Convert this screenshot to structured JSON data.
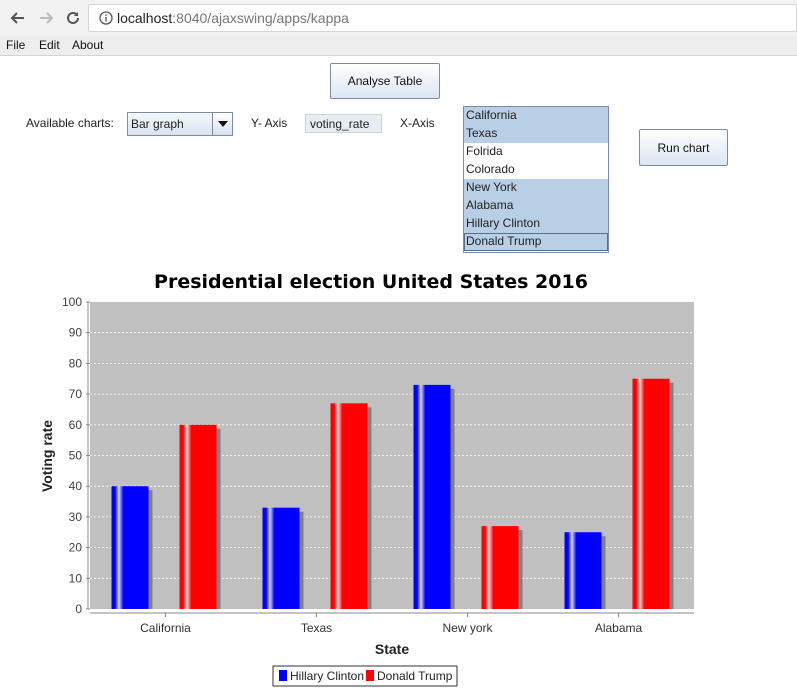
{
  "browser": {
    "url_host": "localhost",
    "url_path": ":8040/ajaxswing/apps/kappa"
  },
  "menu": [
    "File",
    "Edit",
    "About"
  ],
  "controls": {
    "analyse_label": "Analyse Table",
    "available_charts_label": "Available charts:",
    "chart_type_value": "Bar graph",
    "y_axis_label": "Y- Axis",
    "y_axis_value": "voting_rate",
    "x_axis_label": "X-Axis",
    "run_label": "Run chart"
  },
  "xaxis_options": [
    {
      "label": "California",
      "selected": true
    },
    {
      "label": "Texas",
      "selected": true
    },
    {
      "label": "Folrida",
      "selected": false
    },
    {
      "label": "Colorado",
      "selected": false
    },
    {
      "label": "New York",
      "selected": true
    },
    {
      "label": "Alabama",
      "selected": true
    },
    {
      "label": "Hillary Clinton",
      "selected": true
    },
    {
      "label": "Donald Trump",
      "selected": true,
      "focused": true
    }
  ],
  "colors": {
    "plot_background": "#c0c0c0",
    "clinton": "#0000ff",
    "trump": "#ff0000",
    "shadow": "#808080"
  },
  "chart_data": {
    "type": "bar",
    "title": "Presidential election United States 2016",
    "xlabel": "State",
    "ylabel": "Voting rate",
    "categories": [
      "California",
      "Texas",
      "New york",
      "Alabama"
    ],
    "series": [
      {
        "name": "Hillary Clinton",
        "values": [
          40,
          33,
          73,
          25
        ]
      },
      {
        "name": "Donald Trump",
        "values": [
          60,
          67,
          27,
          75
        ]
      }
    ],
    "ylim": [
      0,
      100
    ],
    "yticks": [
      0,
      10,
      20,
      30,
      40,
      50,
      60,
      70,
      80,
      90,
      100
    ],
    "grid": true,
    "legend": "bottom"
  }
}
